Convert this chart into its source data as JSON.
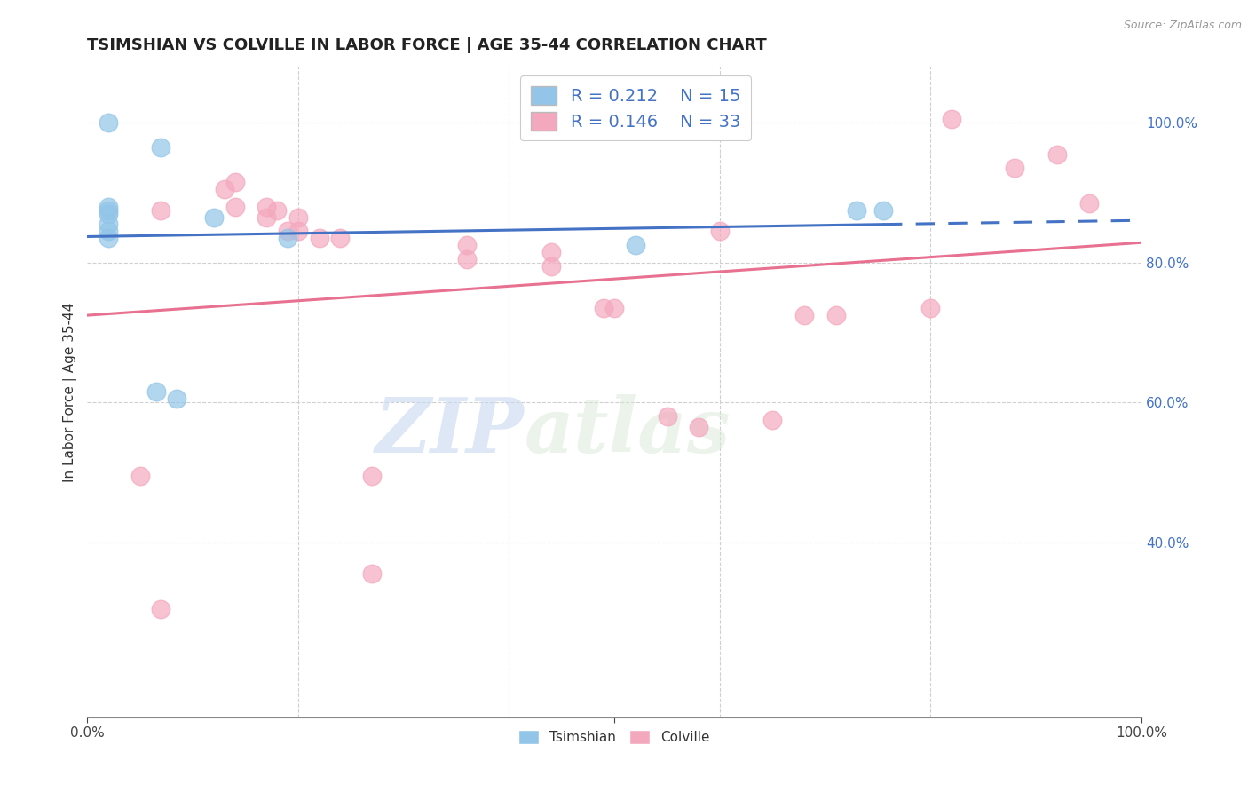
{
  "title": "TSIMSHIAN VS COLVILLE IN LABOR FORCE | AGE 35-44 CORRELATION CHART",
  "source_text": "Source: ZipAtlas.com",
  "ylabel": "In Labor Force | Age 35-44",
  "xlim": [
    0.0,
    1.0
  ],
  "ylim": [
    0.15,
    1.08
  ],
  "y_ticks": [
    0.4,
    0.6,
    0.8,
    1.0
  ],
  "y_tick_labels": [
    "40.0%",
    "60.0%",
    "80.0%",
    "100.0%"
  ],
  "tsimshian_x": [
    0.02,
    0.02,
    0.02,
    0.02,
    0.02,
    0.02,
    0.02,
    0.07,
    0.065,
    0.085,
    0.12,
    0.19,
    0.73,
    0.755,
    0.52
  ],
  "tsimshian_y": [
    1.0,
    0.87,
    0.875,
    0.88,
    0.845,
    0.855,
    0.835,
    0.965,
    0.615,
    0.605,
    0.865,
    0.835,
    0.875,
    0.875,
    0.825
  ],
  "colville_x": [
    0.05,
    0.07,
    0.13,
    0.14,
    0.14,
    0.17,
    0.17,
    0.18,
    0.19,
    0.2,
    0.2,
    0.22,
    0.24,
    0.36,
    0.36,
    0.44,
    0.44,
    0.49,
    0.5,
    0.55,
    0.58,
    0.6,
    0.65,
    0.68,
    0.71,
    0.8,
    0.82,
    0.88,
    0.92,
    0.95,
    0.27,
    0.07,
    0.27
  ],
  "colville_y": [
    0.495,
    0.875,
    0.905,
    0.915,
    0.88,
    0.88,
    0.865,
    0.875,
    0.845,
    0.865,
    0.845,
    0.835,
    0.835,
    0.825,
    0.805,
    0.815,
    0.795,
    0.735,
    0.735,
    0.58,
    0.565,
    0.845,
    0.575,
    0.725,
    0.725,
    0.735,
    1.005,
    0.935,
    0.955,
    0.885,
    0.355,
    0.305,
    0.495
  ],
  "tsimshian_color": "#92C5E8",
  "colville_color": "#F4A8BE",
  "tsimshian_R": 0.212,
  "tsimshian_N": 15,
  "colville_R": 0.146,
  "colville_N": 33,
  "blue_line_color": "#4472C4",
  "pink_line_color": "#E87090",
  "background_color": "#FFFFFF",
  "grid_color": "#D0D0D0",
  "title_fontsize": 13,
  "axis_label_fontsize": 11,
  "tick_fontsize": 11,
  "legend_fontsize": 14,
  "watermark_zip": "ZIP",
  "watermark_atlas": "atlas"
}
